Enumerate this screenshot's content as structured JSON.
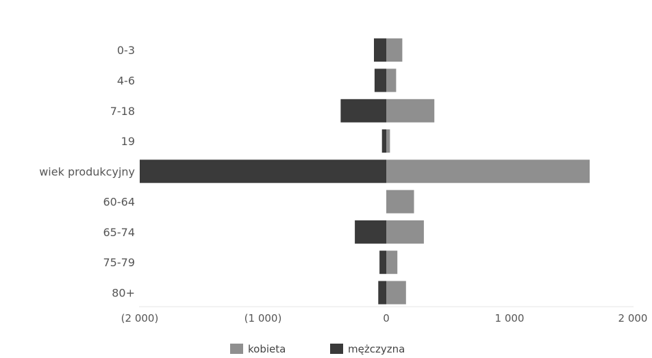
{
  "chart_data": {
    "type": "bar",
    "orientation": "horizontal",
    "stacked": "diverging",
    "title": "",
    "categories": [
      "0-3",
      "4-6",
      "7-18",
      "19",
      "wiek produkcyjny",
      "60-64",
      "65-74",
      "75-79",
      "80+"
    ],
    "series": [
      {
        "name": "kobieta",
        "color": "#8f8f8f",
        "values": [
          130,
          80,
          390,
          30,
          1650,
          225,
          305,
          90,
          160
        ]
      },
      {
        "name": "mężczyzna",
        "color": "#3a3a3a",
        "values": [
          -100,
          -95,
          -370,
          -35,
          -2000,
          0,
          -255,
          -55,
          -65
        ]
      }
    ],
    "x_ticks": [
      -2000,
      -1000,
      0,
      1000,
      2000
    ],
    "x_tick_labels": [
      "(2 000)",
      "(1 000)",
      "0",
      "1 000",
      "2 000"
    ],
    "xlim": [
      -2000,
      2000
    ],
    "xlabel": "",
    "ylabel": "",
    "grid": false,
    "legend_position": "bottom"
  }
}
